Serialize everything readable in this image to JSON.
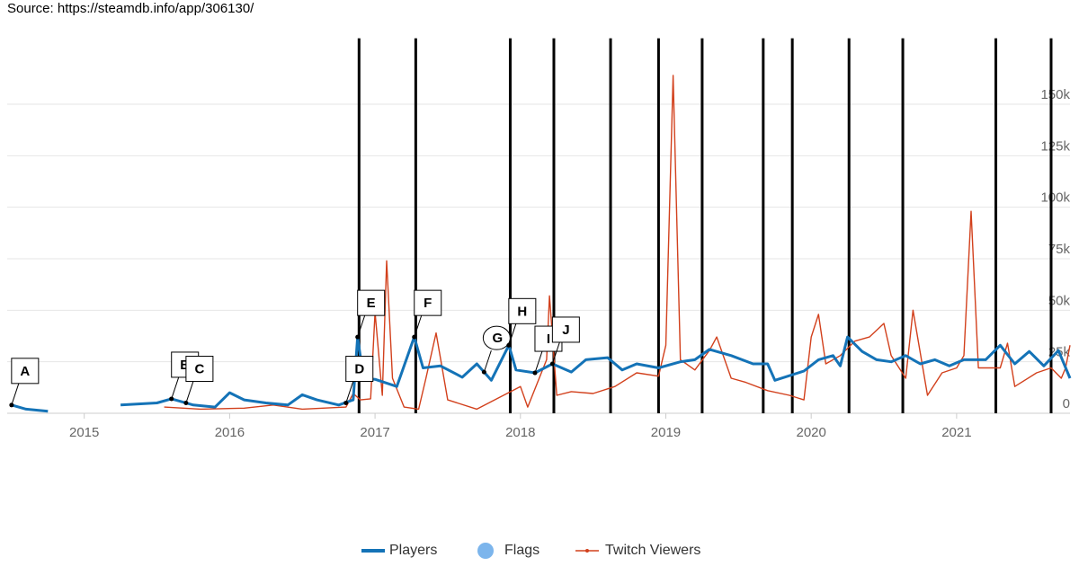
{
  "chart_data": {
    "type": "line",
    "title": "Source: https://steamdb.info/app/306130/",
    "xlim": [
      2014.47,
      2021.78
    ],
    "xticks": [
      2015,
      2016,
      2017,
      2018,
      2019,
      2020,
      2021
    ],
    "ylim": [
      0,
      182000
    ],
    "yticks": [
      0,
      {
        "value": 25000,
        "label": "25k"
      },
      {
        "value": 50000,
        "label": "50k"
      },
      {
        "value": 75000,
        "label": "75k"
      },
      {
        "value": 100000,
        "label": "100k"
      },
      {
        "value": 125000,
        "label": "125k"
      },
      {
        "value": 150000,
        "label": "150k"
      }
    ],
    "grid": true,
    "series": [
      {
        "name": "Players",
        "color": "#1473b7",
        "x": [
          2014.5,
          2014.6,
          2014.75,
          2015.0,
          2015.25,
          2015.5,
          2015.6,
          2015.75,
          2015.9,
          2016.0,
          2016.1,
          2016.25,
          2016.4,
          2016.5,
          2016.6,
          2016.75,
          2016.85,
          2016.88,
          2016.92,
          2017.0,
          2017.15,
          2017.27,
          2017.33,
          2017.45,
          2017.6,
          2017.7,
          2017.8,
          2017.92,
          2017.97,
          2018.1,
          2018.22,
          2018.35,
          2018.45,
          2018.6,
          2018.7,
          2018.8,
          2018.95,
          2019.1,
          2019.2,
          2019.3,
          2019.45,
          2019.6,
          2019.7,
          2019.75,
          2019.95,
          2020.05,
          2020.15,
          2020.2,
          2020.25,
          2020.35,
          2020.45,
          2020.55,
          2020.65,
          2020.75,
          2020.85,
          2020.95,
          2021.05,
          2021.2,
          2021.3,
          2021.4,
          2021.5,
          2021.6,
          2021.7,
          2021.78
        ],
        "values": [
          4000,
          2000,
          1000,
          null,
          4000,
          5000,
          7000,
          4000,
          3000,
          10000,
          6500,
          5000,
          4000,
          9000,
          6500,
          4000,
          6500,
          37000,
          17000,
          16500,
          13000,
          37000,
          22000,
          23000,
          17500,
          24000,
          16000,
          33000,
          21000,
          19600,
          24000,
          20000,
          26000,
          27000,
          21000,
          24000,
          22000,
          25000,
          26000,
          31000,
          28000,
          24000,
          24000,
          16000,
          20500,
          26000,
          28000,
          23000,
          37000,
          30000,
          26000,
          25000,
          28000,
          24000,
          26000,
          23000,
          26000,
          26000,
          33000,
          24000,
          30000,
          23000,
          30500,
          17000
        ]
      },
      {
        "name": "Twitch Viewers",
        "color": "#d2401c",
        "x": [
          2015.55,
          2015.8,
          2016.1,
          2016.3,
          2016.5,
          2016.8,
          2016.85,
          2016.9,
          2016.97,
          2017.0,
          2017.05,
          2017.08,
          2017.12,
          2017.2,
          2017.3,
          2017.35,
          2017.42,
          2017.5,
          2017.7,
          2018.0,
          2018.05,
          2018.18,
          2018.2,
          2018.25,
          2018.35,
          2018.5,
          2018.65,
          2018.8,
          2018.95,
          2019.0,
          2019.05,
          2019.1,
          2019.2,
          2019.3,
          2019.35,
          2019.45,
          2019.55,
          2019.7,
          2019.85,
          2019.95,
          2020.0,
          2020.05,
          2020.1,
          2020.2,
          2020.3,
          2020.4,
          2020.5,
          2020.55,
          2020.65,
          2020.7,
          2020.8,
          2020.9,
          2021.0,
          2021.05,
          2021.1,
          2021.15,
          2021.3,
          2021.35,
          2021.4,
          2021.55,
          2021.65,
          2021.72,
          2021.75,
          2021.78
        ],
        "values": [
          3000,
          2000,
          2500,
          4000,
          2000,
          3000,
          9600,
          6500,
          7000,
          49000,
          8700,
          74000,
          17000,
          3000,
          2000,
          17000,
          39000,
          6500,
          2000,
          13000,
          3000,
          26000,
          57000,
          8700,
          10500,
          9600,
          13000,
          19600,
          18000,
          33000,
          164000,
          26000,
          21000,
          30500,
          37000,
          17000,
          15000,
          11000,
          8700,
          6500,
          37000,
          48000,
          24000,
          28000,
          35000,
          37000,
          43600,
          28000,
          17000,
          50000,
          8700,
          19600,
          22000,
          28000,
          98000,
          22000,
          22000,
          34000,
          13000,
          19600,
          22000,
          17000,
          22000,
          33000
        ]
      }
    ],
    "flags_legend": "Flags",
    "flag_lines": [
      2016.89,
      2017.28,
      2017.93,
      2018.23,
      2018.62,
      2018.95,
      2019.25,
      2019.67,
      2019.87,
      2020.26,
      2020.63,
      2021.27,
      2021.65
    ],
    "annotations": [
      {
        "label": "A",
        "x": 2014.5,
        "y": 4000
      },
      {
        "label": "B",
        "x": 2015.6,
        "y": 7000
      },
      {
        "label": "C",
        "x": 2015.7,
        "y": 5000
      },
      {
        "label": "D",
        "x": 2016.8,
        "y": 5000
      },
      {
        "label": "E",
        "x": 2016.88,
        "y": 37000
      },
      {
        "label": "F",
        "x": 2017.27,
        "y": 37000
      },
      {
        "label": "G",
        "x": 2017.75,
        "y": 20000
      },
      {
        "label": "H",
        "x": 2017.92,
        "y": 33000
      },
      {
        "label": "I",
        "x": 2018.1,
        "y": 19600
      },
      {
        "label": "J",
        "x": 2018.22,
        "y": 24000
      }
    ]
  }
}
